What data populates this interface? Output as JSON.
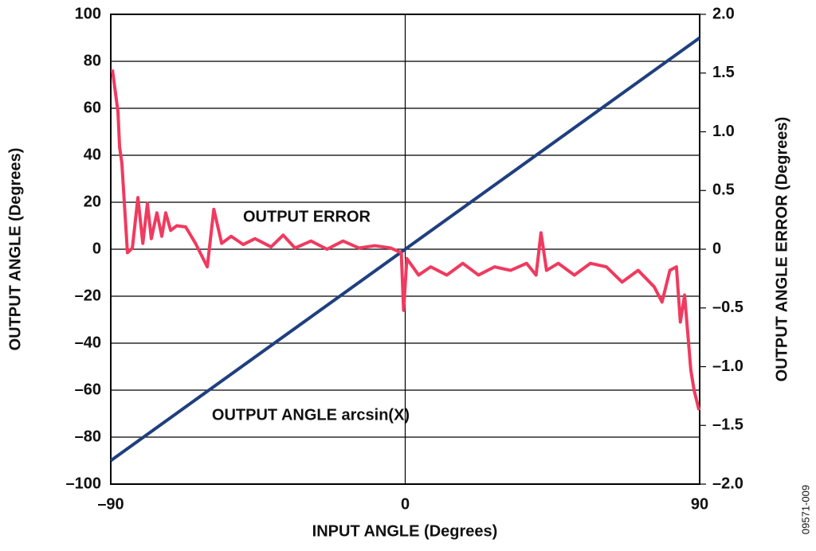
{
  "chart_data": {
    "type": "line",
    "xlabel": "INPUT ANGLE (Degrees)",
    "ylabel": "OUTPUT ANGLE (Degrees)",
    "y2label": "OUTPUT ANGLE ERROR (Degrees)",
    "code": "09571-009",
    "xlim": [
      -90,
      90
    ],
    "xticks": [
      {
        "value": -90,
        "label": "–90"
      },
      0,
      90
    ],
    "ylim": [
      -100,
      100
    ],
    "yticks": [
      {
        "value": -100,
        "label": "–100"
      },
      {
        "value": -80,
        "label": "–80"
      },
      {
        "value": -60,
        "label": "–60"
      },
      {
        "value": -40,
        "label": "–40"
      },
      {
        "value": -20,
        "label": "–20"
      },
      0,
      20,
      40,
      60,
      80,
      100
    ],
    "y2lim": [
      -2,
      2
    ],
    "y2ticks": [
      {
        "value": -2,
        "label": "–2.0"
      },
      {
        "value": -1.5,
        "label": "–1.5"
      },
      {
        "value": -1,
        "label": "–1.0"
      },
      {
        "value": -0.5,
        "label": "–0.5"
      },
      0,
      0.5,
      {
        "value": 1,
        "label": "1.0"
      },
      1.5,
      {
        "value": 2,
        "label": "2.0"
      }
    ],
    "grid": true,
    "series": [
      {
        "name": "OUTPUT ANGLE arcsin(X)",
        "color": "#1f3f7f",
        "x": [
          -90,
          -60,
          -30,
          0,
          30,
          60,
          90
        ],
        "values": [
          -90,
          -60,
          -30,
          0,
          30,
          60,
          90
        ]
      },
      {
        "name": "OUTPUT ERROR",
        "color": "#f03a5f",
        "axis": "y2",
        "x": [
          -89.5,
          -87.8,
          -87.3,
          -86.6,
          -84.9,
          -83.4,
          -81.7,
          -80.2,
          -78.8,
          -77.6,
          -75.9,
          -74.4,
          -73.2,
          -71.7,
          -69.8,
          -67.1,
          -64.1,
          -60.5,
          -58.5,
          -56.1,
          -53.2,
          -49.5,
          -45.9,
          -41,
          -37.3,
          -33.7,
          -28.8,
          -23.9,
          -19,
          -14.1,
          -9.3,
          -4.4,
          -1.2,
          -0.5,
          0.5,
          4.1,
          7.8,
          12.7,
          17.6,
          22.4,
          27.3,
          32.2,
          37.1,
          40,
          41.5,
          43.2,
          46.8,
          51.7,
          56.6,
          61.5,
          66.3,
          71.2,
          76.1,
          78.5,
          80.9,
          82.9,
          84.1,
          85.4,
          87.3,
          88.3,
          89.8
        ],
        "values": [
          1.53,
          1.17,
          0.87,
          0.73,
          -0.03,
          0.01,
          0.44,
          0.05,
          0.39,
          0.09,
          0.31,
          0.11,
          0.31,
          0.16,
          0.2,
          0.19,
          0.05,
          -0.15,
          0.34,
          0.05,
          0.11,
          0.04,
          0.09,
          0.02,
          0.12,
          0.01,
          0.07,
          0,
          0.07,
          0.01,
          0.03,
          0.01,
          -0.03,
          -0.52,
          -0.08,
          -0.22,
          -0.15,
          -0.22,
          -0.12,
          -0.22,
          -0.15,
          -0.18,
          -0.12,
          -0.22,
          0.14,
          -0.18,
          -0.12,
          -0.22,
          -0.12,
          -0.15,
          -0.28,
          -0.18,
          -0.32,
          -0.45,
          -0.18,
          -0.15,
          -0.62,
          -0.39,
          -1.03,
          -1.2,
          -1.37
        ]
      }
    ]
  }
}
